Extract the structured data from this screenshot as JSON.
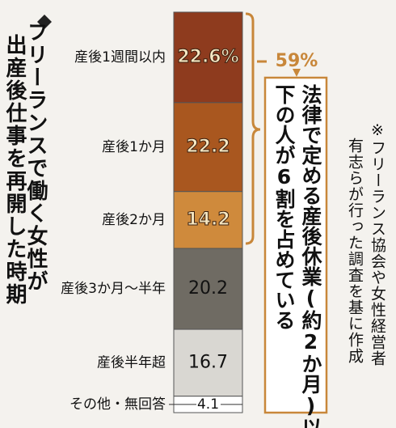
{
  "chart_data": {
    "type": "stacked-bar",
    "title": [
      "フリーランスで働く女性が",
      "出産後仕事を再開した時期"
    ],
    "categories": [
      "産後1週間以内",
      "産後1か月",
      "産後2か月",
      "産後3か月〜半年",
      "産後半年超",
      "その他・無回答"
    ],
    "values": [
      22.6,
      22.2,
      14.2,
      20.2,
      16.7,
      4.1
    ],
    "value_labels": [
      "22.6%",
      "22.2",
      "14.2",
      "20.2",
      "16.7",
      "4.1"
    ],
    "colors": [
      "#8e3b1e",
      "#a9571f",
      "#cf8a3c",
      "#6f6b63",
      "#d9d7d2",
      "#ffffff"
    ],
    "bracket_label": "59%",
    "annotation": [
      "法律で定める産後休業(約2か月)以",
      "下の人が6割を占めている"
    ],
    "note": [
      "※フリーランス協会や女性経営者",
      "有志らが行った調査を基に作成"
    ]
  }
}
